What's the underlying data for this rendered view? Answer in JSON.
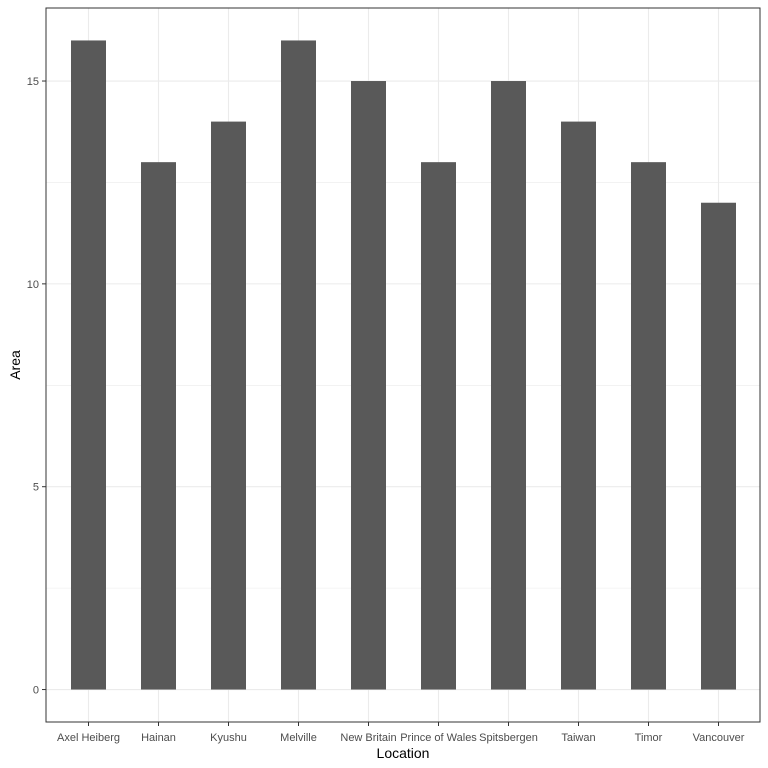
{
  "chart_data": {
    "type": "bar",
    "title": "",
    "xlabel": "Location",
    "ylabel": "Area",
    "categories": [
      "Axel Heiberg",
      "Hainan",
      "Kyushu",
      "Melville",
      "New Britain",
      "Prince of Wales",
      "Spitsbergen",
      "Taiwan",
      "Timor",
      "Vancouver"
    ],
    "values": [
      16,
      13,
      14,
      16,
      15,
      13,
      15,
      14,
      13,
      12
    ],
    "ylim": [
      -0.8,
      16.8
    ],
    "yticks": [
      0,
      5,
      10,
      15
    ],
    "ytick_labels": [
      "0",
      "5",
      "10",
      "15"
    ],
    "grid": true,
    "legend": "none",
    "colors": {
      "bar": "#595959",
      "panel_border": "#333333",
      "grid": "#ebebeb",
      "tick_text": "#4d4d4d",
      "title_text": "#000000"
    }
  }
}
